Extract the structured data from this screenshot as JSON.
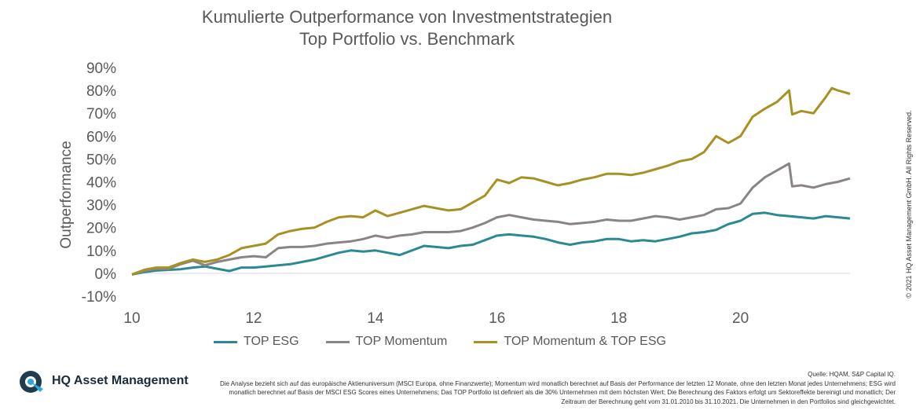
{
  "title_line1": "Kumulierte Outperformance von Investmentstrategien",
  "title_line2": "Top Portfolio vs. Benchmark",
  "copyright": "© 2021 HQ Asset Management GmbH. All Rights Reserved.",
  "logo_text": "HQ Asset Management",
  "source": "Quelle: HQAM, S&P Capital IQ.",
  "footnote": "Die Analyse bezieht sich auf das europäische Aktienuniversum (MSCI Europa, ohne Finanzwerte); Momentum wird monatlich berechnet auf Basis der Performance der letzten 12 Monate, ohne den letzten Monat jedes Unternehmens; ESG wird monatlich berechnet auf Basis der MSCI ESG Scores eines Unternehmens; Das TOP Portfolio ist definiert als die 30% Unternehmen mit dem höchsten Wert; Die Berechnung des Faktors erfolgt um Sektoreffekte bereinigt und monatlich; Der Zeitraum der Berechnung geht vom 31.01.2010 bis 31.10.2021. Die Unternehmen in den Portfolios sind gleichgewichtet.",
  "chart_data": {
    "type": "line",
    "title": "Kumulierte Outperformance von Investmentstrategien / Top Portfolio vs. Benchmark",
    "ylabel": "Outperformance",
    "xlabel": "",
    "ylim": [
      -10,
      90
    ],
    "xlim": [
      10,
      21.8
    ],
    "yticks": [
      -10,
      0,
      10,
      20,
      30,
      40,
      50,
      60,
      70,
      80,
      90
    ],
    "ytick_labels": [
      "-10%",
      "0%",
      "10%",
      "20%",
      "30%",
      "40%",
      "50%",
      "60%",
      "70%",
      "80%",
      "90%"
    ],
    "xticks": [
      10,
      12,
      14,
      16,
      18,
      20
    ],
    "xtick_labels": [
      "10",
      "12",
      "14",
      "16",
      "18",
      "20"
    ],
    "grid": false,
    "legend_position": "bottom",
    "series": [
      {
        "name": "TOP ESG",
        "color": "#2a8a94",
        "points": [
          [
            10.0,
            -0.5
          ],
          [
            10.2,
            0.5
          ],
          [
            10.4,
            1.2
          ],
          [
            10.6,
            1.5
          ],
          [
            10.8,
            1.8
          ],
          [
            11.0,
            2.5
          ],
          [
            11.2,
            3.0
          ],
          [
            11.4,
            2.0
          ],
          [
            11.6,
            1.0
          ],
          [
            11.8,
            2.5
          ],
          [
            12.0,
            2.5
          ],
          [
            12.2,
            3.0
          ],
          [
            12.4,
            3.5
          ],
          [
            12.6,
            4.0
          ],
          [
            12.8,
            5.0
          ],
          [
            13.0,
            6.0
          ],
          [
            13.2,
            7.5
          ],
          [
            13.4,
            9.0
          ],
          [
            13.6,
            10.0
          ],
          [
            13.8,
            9.5
          ],
          [
            14.0,
            10.0
          ],
          [
            14.2,
            9.0
          ],
          [
            14.4,
            8.0
          ],
          [
            14.6,
            10.0
          ],
          [
            14.8,
            12.0
          ],
          [
            15.0,
            11.5
          ],
          [
            15.2,
            11.0
          ],
          [
            15.4,
            12.0
          ],
          [
            15.6,
            12.5
          ],
          [
            15.8,
            14.5
          ],
          [
            16.0,
            16.5
          ],
          [
            16.2,
            17.0
          ],
          [
            16.4,
            16.5
          ],
          [
            16.6,
            16.0
          ],
          [
            16.8,
            15.0
          ],
          [
            17.0,
            13.5
          ],
          [
            17.2,
            12.5
          ],
          [
            17.4,
            13.5
          ],
          [
            17.6,
            14.0
          ],
          [
            17.8,
            15.0
          ],
          [
            18.0,
            15.0
          ],
          [
            18.2,
            14.0
          ],
          [
            18.4,
            14.5
          ],
          [
            18.6,
            14.0
          ],
          [
            18.8,
            15.0
          ],
          [
            19.0,
            16.0
          ],
          [
            19.2,
            17.5
          ],
          [
            19.4,
            18.0
          ],
          [
            19.6,
            19.0
          ],
          [
            19.8,
            21.5
          ],
          [
            20.0,
            23.0
          ],
          [
            20.2,
            26.0
          ],
          [
            20.4,
            26.5
          ],
          [
            20.6,
            25.5
          ],
          [
            20.8,
            25.0
          ],
          [
            21.0,
            24.5
          ],
          [
            21.2,
            24.0
          ],
          [
            21.4,
            25.0
          ],
          [
            21.6,
            24.5
          ],
          [
            21.8,
            24.0
          ]
        ]
      },
      {
        "name": "TOP Momentum",
        "color": "#8a8486",
        "points": [
          [
            10.0,
            -0.5
          ],
          [
            10.2,
            1.0
          ],
          [
            10.4,
            2.0
          ],
          [
            10.6,
            2.0
          ],
          [
            10.8,
            4.0
          ],
          [
            11.0,
            5.5
          ],
          [
            11.2,
            3.5
          ],
          [
            11.4,
            5.0
          ],
          [
            11.6,
            6.0
          ],
          [
            11.8,
            7.0
          ],
          [
            12.0,
            7.5
          ],
          [
            12.2,
            7.0
          ],
          [
            12.4,
            11.0
          ],
          [
            12.6,
            11.5
          ],
          [
            12.8,
            11.5
          ],
          [
            13.0,
            12.0
          ],
          [
            13.2,
            13.0
          ],
          [
            13.4,
            13.5
          ],
          [
            13.6,
            14.0
          ],
          [
            13.8,
            15.0
          ],
          [
            14.0,
            16.5
          ],
          [
            14.2,
            15.5
          ],
          [
            14.4,
            16.5
          ],
          [
            14.6,
            17.0
          ],
          [
            14.8,
            18.0
          ],
          [
            15.0,
            18.0
          ],
          [
            15.2,
            18.0
          ],
          [
            15.4,
            18.5
          ],
          [
            15.6,
            20.0
          ],
          [
            15.8,
            22.0
          ],
          [
            16.0,
            24.5
          ],
          [
            16.2,
            25.5
          ],
          [
            16.4,
            24.5
          ],
          [
            16.6,
            23.5
          ],
          [
            16.8,
            23.0
          ],
          [
            17.0,
            22.5
          ],
          [
            17.2,
            21.5
          ],
          [
            17.4,
            22.0
          ],
          [
            17.6,
            22.5
          ],
          [
            17.8,
            23.5
          ],
          [
            18.0,
            23.0
          ],
          [
            18.2,
            23.0
          ],
          [
            18.4,
            24.0
          ],
          [
            18.6,
            25.0
          ],
          [
            18.8,
            24.5
          ],
          [
            19.0,
            23.5
          ],
          [
            19.2,
            24.5
          ],
          [
            19.4,
            25.5
          ],
          [
            19.6,
            28.0
          ],
          [
            19.8,
            28.5
          ],
          [
            20.0,
            30.5
          ],
          [
            20.2,
            37.5
          ],
          [
            20.4,
            42.0
          ],
          [
            20.6,
            45.0
          ],
          [
            20.8,
            48.0
          ],
          [
            20.85,
            38.0
          ],
          [
            21.0,
            38.5
          ],
          [
            21.2,
            37.5
          ],
          [
            21.4,
            39.0
          ],
          [
            21.6,
            40.0
          ],
          [
            21.8,
            41.5
          ]
        ]
      },
      {
        "name": "TOP Momentum & TOP ESG",
        "color": "#a89123",
        "points": [
          [
            10.0,
            -0.5
          ],
          [
            10.2,
            1.5
          ],
          [
            10.4,
            2.5
          ],
          [
            10.6,
            2.5
          ],
          [
            10.8,
            4.5
          ],
          [
            11.0,
            6.0
          ],
          [
            11.2,
            5.0
          ],
          [
            11.4,
            6.0
          ],
          [
            11.6,
            8.0
          ],
          [
            11.8,
            11.0
          ],
          [
            12.0,
            12.0
          ],
          [
            12.2,
            13.0
          ],
          [
            12.4,
            17.0
          ],
          [
            12.6,
            18.5
          ],
          [
            12.8,
            19.5
          ],
          [
            13.0,
            20.0
          ],
          [
            13.2,
            22.5
          ],
          [
            13.4,
            24.5
          ],
          [
            13.6,
            25.0
          ],
          [
            13.8,
            24.5
          ],
          [
            14.0,
            27.5
          ],
          [
            14.2,
            25.0
          ],
          [
            14.4,
            26.5
          ],
          [
            14.6,
            28.0
          ],
          [
            14.8,
            29.5
          ],
          [
            15.0,
            28.5
          ],
          [
            15.2,
            27.5
          ],
          [
            15.4,
            28.0
          ],
          [
            15.6,
            31.0
          ],
          [
            15.8,
            34.0
          ],
          [
            16.0,
            41.0
          ],
          [
            16.2,
            39.5
          ],
          [
            16.4,
            42.0
          ],
          [
            16.6,
            41.5
          ],
          [
            16.8,
            40.0
          ],
          [
            17.0,
            38.5
          ],
          [
            17.2,
            39.5
          ],
          [
            17.4,
            41.0
          ],
          [
            17.6,
            42.0
          ],
          [
            17.8,
            43.5
          ],
          [
            18.0,
            43.5
          ],
          [
            18.2,
            43.0
          ],
          [
            18.4,
            44.0
          ],
          [
            18.6,
            45.5
          ],
          [
            18.8,
            47.0
          ],
          [
            19.0,
            49.0
          ],
          [
            19.2,
            50.0
          ],
          [
            19.4,
            53.0
          ],
          [
            19.6,
            60.0
          ],
          [
            19.8,
            57.0
          ],
          [
            20.0,
            60.0
          ],
          [
            20.2,
            68.5
          ],
          [
            20.4,
            72.0
          ],
          [
            20.6,
            75.0
          ],
          [
            20.8,
            80.0
          ],
          [
            20.85,
            69.5
          ],
          [
            21.0,
            71.0
          ],
          [
            21.2,
            70.0
          ],
          [
            21.4,
            77.0
          ],
          [
            21.5,
            81.0
          ],
          [
            21.6,
            80.0
          ],
          [
            21.8,
            78.5
          ]
        ]
      }
    ]
  }
}
